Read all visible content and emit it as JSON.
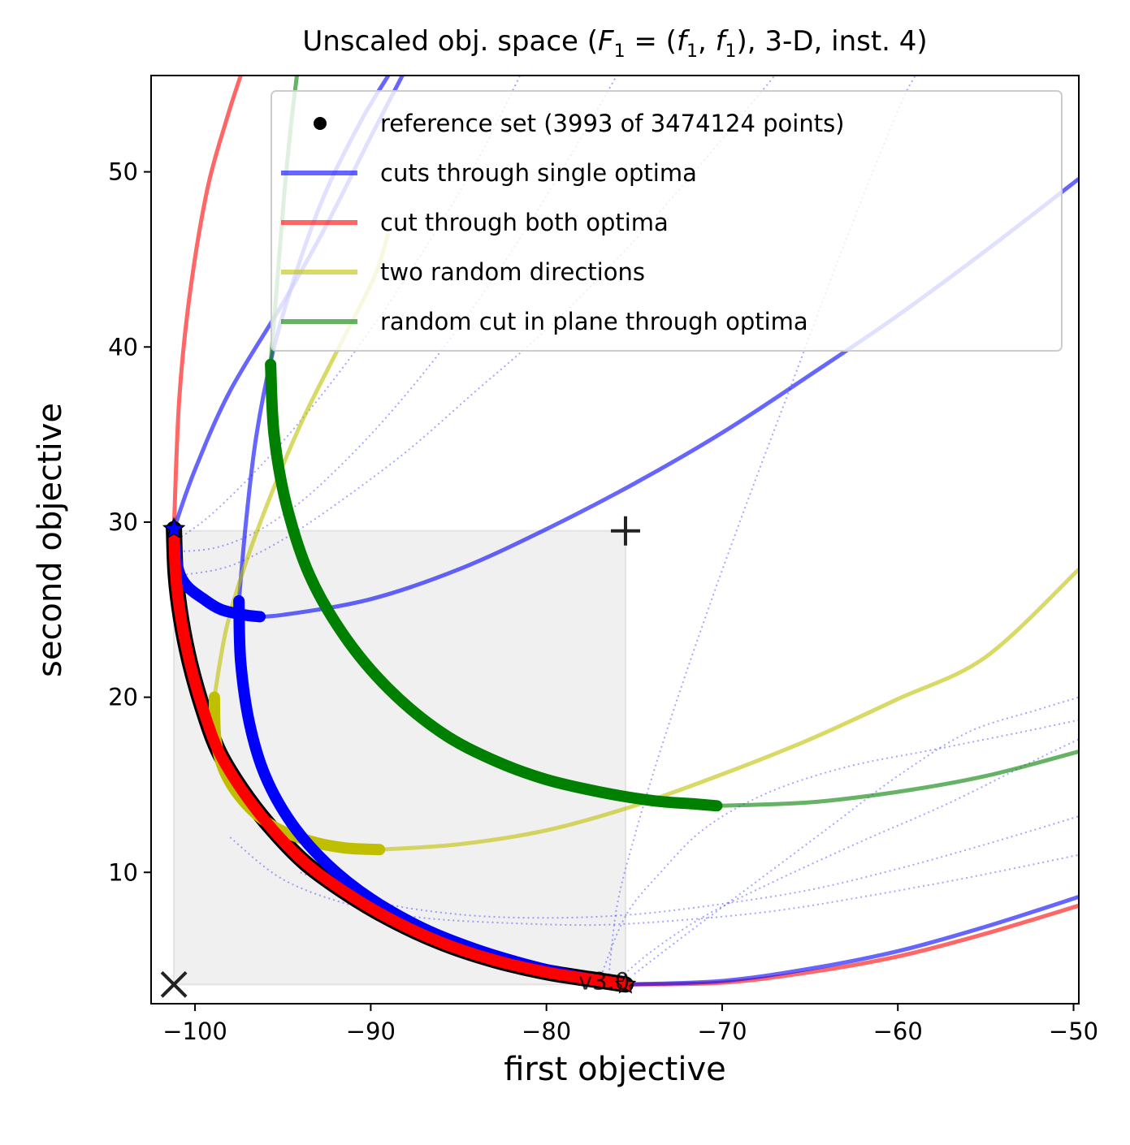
{
  "chart_data": {
    "type": "line",
    "title": "Unscaled obj. space ($F_1=(f_1,f_1)$, 3-D, inst. 4)",
    "title_parts": {
      "prefix": "Unscaled obj. space (",
      "F": "F",
      "F_sub": "1",
      "eq": " = (",
      "f": "f",
      "f_sub": "1",
      "comma": ", ",
      "suffix": "), 3-D, inst. 4)"
    },
    "xlabel": "first objective",
    "ylabel": "second objective",
    "xlim": [
      -102.5,
      -49.7
    ],
    "ylim": [
      2.5,
      55.5
    ],
    "xticks": [
      {
        "value": -100,
        "label": "−100"
      },
      {
        "value": -90,
        "label": "−90"
      },
      {
        "value": -80,
        "label": "−80"
      },
      {
        "value": -70,
        "label": "−70"
      },
      {
        "value": -60,
        "label": "−60"
      },
      {
        "value": -50,
        "label": "−50"
      }
    ],
    "yticks": [
      {
        "value": 10,
        "label": "10"
      },
      {
        "value": 20,
        "label": "20"
      },
      {
        "value": 30,
        "label": "30"
      },
      {
        "value": 40,
        "label": "40"
      },
      {
        "value": 50,
        "label": "50"
      }
    ],
    "grid": false,
    "legend_position": "top-right",
    "legend": [
      {
        "label": "reference set (3993 of 3474124 points)",
        "kind": "marker",
        "color": "#000000"
      },
      {
        "label": "cuts through single optima",
        "kind": "line",
        "color": "#0000ff"
      },
      {
        "label": "cut through both optima",
        "kind": "line",
        "color": "#ff0000"
      },
      {
        "label": "two random directions",
        "kind": "line",
        "color": "#bfbf00"
      },
      {
        "label": "random cut in plane through optima",
        "kind": "line",
        "color": "#008000"
      }
    ],
    "annotation": "v3.0",
    "ideal_point": [
      -101.2,
      3.6
    ],
    "nadir_point": [
      -75.5,
      29.5
    ],
    "optimum_1": [
      -101.2,
      29.6
    ],
    "optimum_2": [
      -75.5,
      3.6
    ],
    "series": [
      {
        "name": "reference set (3993 of 3474124 points)",
        "color": "#000000",
        "role": "reference",
        "points": [
          [
            -101.2,
            29.6
          ],
          [
            -101.1,
            27.0
          ],
          [
            -100.8,
            24.5
          ],
          [
            -100.3,
            22.0
          ],
          [
            -99.6,
            19.5
          ],
          [
            -98.7,
            17.0
          ],
          [
            -97.4,
            14.8
          ],
          [
            -95.8,
            12.7
          ],
          [
            -93.8,
            10.6
          ],
          [
            -91.5,
            8.9
          ],
          [
            -89.0,
            7.4
          ],
          [
            -86.0,
            6.0
          ],
          [
            -83.0,
            5.0
          ],
          [
            -80.0,
            4.3
          ],
          [
            -77.5,
            3.9
          ],
          [
            -75.5,
            3.6
          ]
        ]
      },
      {
        "name": "cut through both optima",
        "color": "#ff0000",
        "role": "cut-both",
        "thin_points": [
          [
            -101.2,
            29.6
          ],
          [
            -100.9,
            37.0
          ],
          [
            -100.3,
            43.0
          ],
          [
            -99.3,
            49.0
          ],
          [
            -98.2,
            53.0
          ],
          [
            -97.4,
            55.5
          ]
        ],
        "thin_points_2": [
          [
            -75.5,
            3.6
          ],
          [
            -70.0,
            3.7
          ],
          [
            -65.0,
            4.3
          ],
          [
            -60.0,
            5.2
          ],
          [
            -55.0,
            6.5
          ],
          [
            -49.7,
            8.1
          ]
        ],
        "thick_points": [
          [
            -101.2,
            29.6
          ],
          [
            -101.1,
            27.0
          ],
          [
            -100.8,
            24.5
          ],
          [
            -100.3,
            22.0
          ],
          [
            -99.6,
            19.5
          ],
          [
            -98.7,
            17.0
          ],
          [
            -97.4,
            14.8
          ],
          [
            -95.8,
            12.7
          ],
          [
            -93.8,
            10.6
          ],
          [
            -91.5,
            8.9
          ],
          [
            -89.0,
            7.4
          ],
          [
            -86.0,
            6.0
          ],
          [
            -83.0,
            5.0
          ],
          [
            -80.0,
            4.3
          ],
          [
            -77.5,
            3.9
          ],
          [
            -75.5,
            3.6
          ]
        ]
      },
      {
        "name": "cuts through single optima",
        "color": "#0000ff",
        "role": "cut-single-1",
        "thin_points": [
          [
            -101.2,
            29.6
          ],
          [
            -100.0,
            33.0
          ],
          [
            -98.0,
            37.5
          ],
          [
            -95.0,
            42.5
          ],
          [
            -92.5,
            47.0
          ],
          [
            -90.0,
            52.0
          ],
          [
            -88.2,
            55.5
          ]
        ],
        "thin_points_2": [
          [
            -97.0,
            24.6
          ],
          [
            -95.0,
            24.7
          ],
          [
            -90.0,
            25.6
          ],
          [
            -85.0,
            27.3
          ],
          [
            -80.0,
            29.6
          ],
          [
            -75.0,
            32.2
          ],
          [
            -70.0,
            35.1
          ],
          [
            -65.0,
            38.4
          ],
          [
            -60.0,
            41.8
          ],
          [
            -55.0,
            45.5
          ],
          [
            -49.7,
            49.6
          ]
        ],
        "thick_points": [
          [
            -101.2,
            29.6
          ],
          [
            -101.0,
            27.5
          ],
          [
            -100.5,
            26.4
          ],
          [
            -99.5,
            25.6
          ],
          [
            -98.5,
            25.0
          ],
          [
            -97.2,
            24.7
          ],
          [
            -96.3,
            24.6
          ]
        ]
      },
      {
        "name": "cuts through single optima",
        "color": "#0000ff",
        "role": "cut-single-2",
        "thin_points": [
          [
            -97.5,
            25.5
          ],
          [
            -97.1,
            30.0
          ],
          [
            -96.5,
            35.0
          ],
          [
            -95.5,
            40.0
          ],
          [
            -94.0,
            45.0
          ],
          [
            -92.5,
            49.0
          ],
          [
            -90.5,
            53.0
          ],
          [
            -89.0,
            55.5
          ]
        ],
        "thin_points_2": [
          [
            -75.5,
            3.6
          ],
          [
            -70.0,
            3.8
          ],
          [
            -65.0,
            4.5
          ],
          [
            -60.0,
            5.5
          ],
          [
            -55.0,
            6.9
          ],
          [
            -49.7,
            8.6
          ]
        ],
        "thick_points": [
          [
            -97.5,
            25.5
          ],
          [
            -97.4,
            22.0
          ],
          [
            -96.9,
            18.5
          ],
          [
            -96.0,
            15.5
          ],
          [
            -94.5,
            12.8
          ],
          [
            -92.5,
            10.5
          ],
          [
            -90.0,
            8.5
          ],
          [
            -87.0,
            6.8
          ],
          [
            -84.0,
            5.6
          ],
          [
            -81.0,
            4.7
          ],
          [
            -78.0,
            4.0
          ],
          [
            -75.5,
            3.6
          ]
        ]
      },
      {
        "name": "two random directions",
        "color": "#bfbf00",
        "role": "random-directions",
        "thin_points": [
          [
            -98.9,
            20.0
          ],
          [
            -98.2,
            24.0
          ],
          [
            -97.0,
            28.0
          ],
          [
            -95.5,
            32.0
          ],
          [
            -93.8,
            36.0
          ],
          [
            -91.8,
            40.0
          ],
          [
            -89.8,
            44.0
          ],
          [
            -89.0,
            46.5
          ]
        ],
        "thin_points_2": [
          [
            -89.5,
            11.3
          ],
          [
            -85.0,
            11.6
          ],
          [
            -80.0,
            12.4
          ],
          [
            -75.0,
            13.8
          ],
          [
            -70.0,
            15.6
          ],
          [
            -65.0,
            17.6
          ],
          [
            -60.0,
            19.9
          ],
          [
            -55.0,
            22.3
          ],
          [
            -49.7,
            27.3
          ]
        ],
        "thick_points": [
          [
            -98.9,
            20.0
          ],
          [
            -98.8,
            17.5
          ],
          [
            -98.2,
            15.5
          ],
          [
            -97.0,
            13.8
          ],
          [
            -95.5,
            12.6
          ],
          [
            -93.5,
            11.8
          ],
          [
            -91.5,
            11.4
          ],
          [
            -89.5,
            11.3
          ]
        ]
      },
      {
        "name": "random cut in plane through optima",
        "color": "#008000",
        "role": "random-plane",
        "thin_points": [
          [
            -95.7,
            39.0
          ],
          [
            -95.3,
            44.0
          ],
          [
            -94.9,
            49.0
          ],
          [
            -94.5,
            53.0
          ],
          [
            -94.2,
            55.5
          ]
        ],
        "thin_points_2": [
          [
            -70.3,
            13.8
          ],
          [
            -65.0,
            14.0
          ],
          [
            -60.0,
            14.6
          ],
          [
            -55.0,
            15.5
          ],
          [
            -49.7,
            16.9
          ]
        ],
        "thick_points": [
          [
            -95.7,
            39.0
          ],
          [
            -95.5,
            35.0
          ],
          [
            -94.8,
            31.0
          ],
          [
            -93.5,
            27.0
          ],
          [
            -91.5,
            23.5
          ],
          [
            -89.0,
            20.5
          ],
          [
            -86.0,
            18.0
          ],
          [
            -83.0,
            16.4
          ],
          [
            -80.0,
            15.3
          ],
          [
            -77.0,
            14.6
          ],
          [
            -74.0,
            14.1
          ],
          [
            -71.5,
            13.9
          ],
          [
            -70.3,
            13.8
          ]
        ]
      }
    ],
    "dotted_curves": [
      [
        [
          -101.2,
          28.3
        ],
        [
          -99.0,
          28.5
        ],
        [
          -97.0,
          29.2
        ],
        [
          -95.0,
          30.4
        ],
        [
          -93.0,
          32.0
        ],
        [
          -90.0,
          35.0
        ],
        [
          -87.0,
          38.5
        ],
        [
          -84.0,
          42.5
        ],
        [
          -81.0,
          47.0
        ],
        [
          -78.0,
          52.0
        ],
        [
          -76.0,
          55.5
        ]
      ],
      [
        [
          -101.0,
          29.0
        ],
        [
          -99.0,
          30.5
        ],
        [
          -96.0,
          33.5
        ],
        [
          -93.0,
          37.0
        ],
        [
          -90.0,
          41.0
        ],
        [
          -87.0,
          45.5
        ],
        [
          -84.0,
          50.5
        ],
        [
          -81.5,
          55.5
        ]
      ],
      [
        [
          -100.5,
          27.0
        ],
        [
          -98.0,
          27.5
        ],
        [
          -95.0,
          29.0
        ],
        [
          -92.0,
          31.0
        ],
        [
          -88.0,
          34.0
        ],
        [
          -84.0,
          37.5
        ],
        [
          -80.0,
          41.0
        ],
        [
          -76.0,
          45.0
        ],
        [
          -72.0,
          49.5
        ],
        [
          -67.0,
          55.5
        ]
      ],
      [
        [
          -98.0,
          12.0
        ],
        [
          -95.0,
          9.6
        ],
        [
          -91.0,
          8.1
        ],
        [
          -87.0,
          7.4
        ],
        [
          -82.0,
          7.1
        ],
        [
          -77.0,
          7.0
        ],
        [
          -72.0,
          7.3
        ],
        [
          -67.0,
          7.8
        ],
        [
          -62.0,
          8.6
        ],
        [
          -56.0,
          9.7
        ],
        [
          -49.7,
          11.0
        ]
      ],
      [
        [
          -94.0,
          10.0
        ],
        [
          -90.0,
          8.4
        ],
        [
          -85.0,
          7.6
        ],
        [
          -80.0,
          7.4
        ],
        [
          -75.0,
          7.6
        ],
        [
          -70.0,
          8.2
        ],
        [
          -65.0,
          9.0
        ],
        [
          -60.0,
          10.2
        ],
        [
          -55.0,
          11.6
        ],
        [
          -49.7,
          13.2
        ]
      ],
      [
        [
          -76.5,
          3.6
        ],
        [
          -76.0,
          8.0
        ],
        [
          -75.0,
          12.0
        ],
        [
          -73.5,
          17.0
        ],
        [
          -71.5,
          23.0
        ],
        [
          -69.0,
          30.0
        ],
        [
          -66.0,
          38.0
        ],
        [
          -63.0,
          46.0
        ],
        [
          -60.0,
          53.5
        ],
        [
          -59.0,
          55.5
        ]
      ],
      [
        [
          -77.0,
          3.8
        ],
        [
          -75.5,
          7.5
        ],
        [
          -73.5,
          10.0
        ],
        [
          -71.0,
          12.5
        ],
        [
          -67.5,
          14.5
        ],
        [
          -63.0,
          16.0
        ],
        [
          -58.0,
          17.0
        ],
        [
          -53.0,
          18.0
        ],
        [
          -49.7,
          18.7
        ]
      ],
      [
        [
          -76.0,
          3.8
        ],
        [
          -74.0,
          5.5
        ],
        [
          -71.0,
          7.5
        ],
        [
          -67.0,
          9.5
        ],
        [
          -62.0,
          11.8
        ],
        [
          -57.0,
          14.0
        ],
        [
          -52.0,
          16.5
        ],
        [
          -49.7,
          17.6
        ]
      ],
      [
        [
          -75.0,
          4.2
        ],
        [
          -72.0,
          6.5
        ],
        [
          -68.0,
          9.5
        ],
        [
          -64.0,
          12.5
        ],
        [
          -60.0,
          15.5
        ],
        [
          -56.0,
          18.0
        ],
        [
          -52.0,
          19.3
        ],
        [
          -49.7,
          20.0
        ]
      ]
    ]
  }
}
